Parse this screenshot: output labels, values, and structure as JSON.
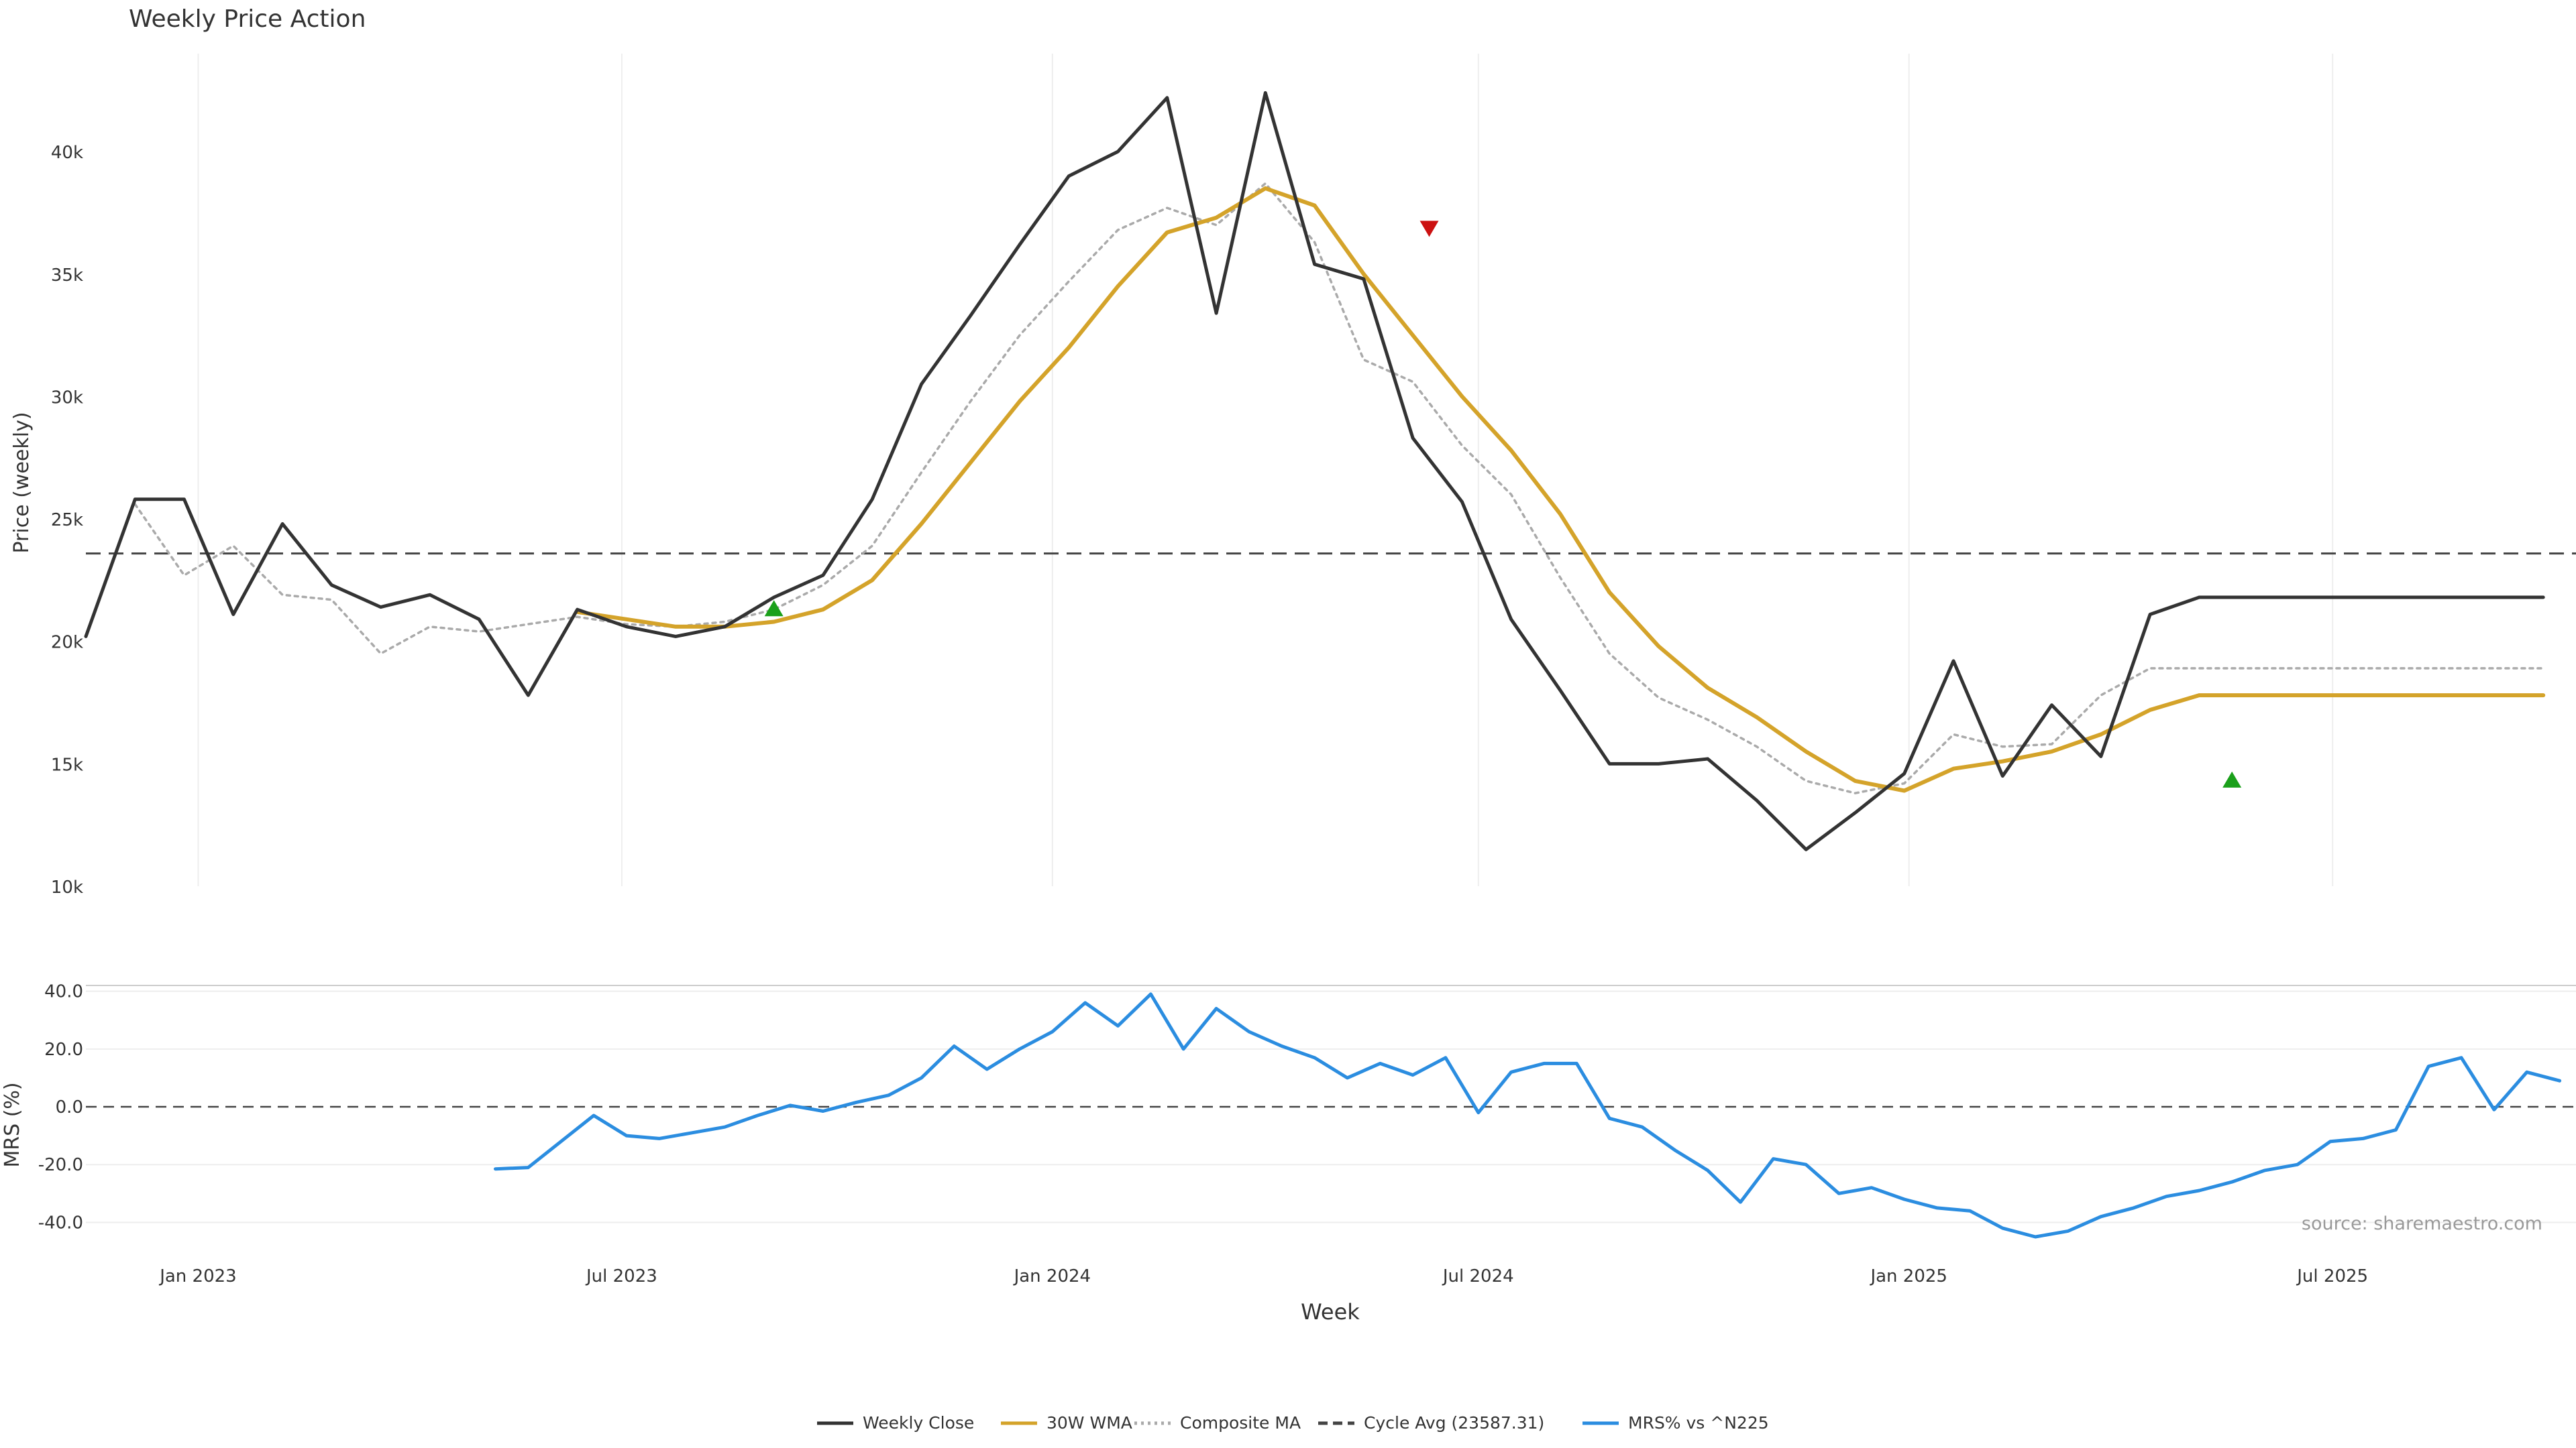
{
  "chart_data": [
    {
      "type": "line",
      "title": "Weekly Price Action",
      "xlabel": "",
      "ylabel": "Price (weekly)",
      "ylim": [
        10000,
        44000
      ],
      "y_ticks": [
        {
          "value": 10000,
          "label": "10k"
        },
        {
          "value": 15000,
          "label": "15k"
        },
        {
          "value": 20000,
          "label": "20k"
        },
        {
          "value": 25000,
          "label": "25k"
        },
        {
          "value": 30000,
          "label": "30k"
        },
        {
          "value": 35000,
          "label": "35k"
        },
        {
          "value": 40000,
          "label": "40k"
        }
      ],
      "x_ticks": [
        "Jan 2023",
        "Jul 2023",
        "Jan 2024",
        "Jul 2024",
        "Jan 2025",
        "Jul 2025"
      ],
      "x": [
        "2022-11-14",
        "2022-12-05",
        "2022-12-26",
        "2023-01-16",
        "2023-02-06",
        "2023-02-27",
        "2023-03-20",
        "2023-04-10",
        "2023-05-01",
        "2023-05-22",
        "2023-06-12",
        "2023-07-03",
        "2023-07-24",
        "2023-08-14",
        "2023-09-04",
        "2023-09-25",
        "2023-10-16",
        "2023-11-06",
        "2023-11-27",
        "2023-12-18",
        "2024-01-08",
        "2024-01-29",
        "2024-02-19",
        "2024-03-11",
        "2024-04-01",
        "2024-04-22",
        "2024-05-13",
        "2024-06-03",
        "2024-06-24",
        "2024-07-15",
        "2024-08-05",
        "2024-08-26",
        "2024-09-16",
        "2024-10-07",
        "2024-10-28",
        "2024-11-18",
        "2024-12-09",
        "2024-12-30",
        "2025-01-20",
        "2025-02-10",
        "2025-03-03",
        "2025-03-24",
        "2025-04-14",
        "2025-05-05",
        "2025-05-26",
        "2025-06-16",
        "2025-07-07",
        "2025-07-28",
        "2025-08-18",
        "2025-09-08",
        "2025-09-29"
      ],
      "grid": {
        "x": true,
        "y": false
      },
      "reference_line": {
        "name": "Cycle Avg (23587.31)",
        "value": 23587.31
      },
      "series": [
        {
          "name": "Weekly Close",
          "color": "#333333",
          "style": "solid",
          "values": [
            20200,
            25800,
            25800,
            21100,
            24800,
            22300,
            21400,
            21900,
            20900,
            17800,
            21300,
            20600,
            20200,
            20600,
            21800,
            22700,
            25800,
            30500,
            33300,
            36200,
            39000,
            40000,
            42200,
            33400,
            42400,
            35400,
            34800,
            28300,
            25700,
            20900,
            18000,
            15000,
            15000,
            15200,
            13500,
            11500,
            13000,
            14600,
            19200,
            14500,
            17400,
            15300,
            21100,
            21800,
            21800,
            21800,
            21800,
            21800,
            21800,
            21800,
            21800
          ]
        },
        {
          "name": "30W WMA",
          "color": "#d4a32a",
          "style": "solid",
          "values": [
            null,
            null,
            null,
            null,
            null,
            null,
            null,
            null,
            null,
            null,
            21200,
            20900,
            20600,
            20600,
            20800,
            21300,
            22500,
            24800,
            27300,
            29800,
            32000,
            34500,
            36700,
            37300,
            38500,
            37800,
            35000,
            32500,
            30000,
            27800,
            25200,
            22000,
            19800,
            18100,
            16900,
            15500,
            14300,
            13900,
            14800,
            15100,
            15500,
            16200,
            17200,
            17800,
            17800,
            17800,
            17800,
            17800,
            17800,
            17800,
            17800
          ]
        },
        {
          "name": "Composite MA",
          "color": "#aaaaaa",
          "style": "dotted",
          "values": [
            null,
            25600,
            22700,
            23900,
            21900,
            21700,
            19500,
            20600,
            20400,
            20700,
            21000,
            20700,
            20600,
            20800,
            21300,
            22300,
            23900,
            26900,
            29800,
            32500,
            34700,
            36800,
            37700,
            37000,
            38700,
            36300,
            31500,
            30600,
            28000,
            26000,
            22600,
            19500,
            17700,
            16800,
            15700,
            14300,
            13800,
            14200,
            16200,
            15700,
            15800,
            17800,
            18900,
            18900,
            18900,
            18900,
            18900,
            18900,
            18900,
            18900,
            18900
          ]
        }
      ],
      "markers": [
        {
          "type": "buy",
          "x": "2023-09-04",
          "y": 21300,
          "color": "#1aa01a"
        },
        {
          "type": "sell",
          "x": "2024-06-10",
          "y": 36900,
          "color": "#cc1111"
        },
        {
          "type": "buy",
          "x": "2025-05-19",
          "y": 14300,
          "color": "#1aa01a"
        }
      ]
    },
    {
      "type": "line",
      "title": "",
      "xlabel": "Week",
      "ylabel": "MRS (%)",
      "ylim": [
        -45,
        42
      ],
      "y_ticks": [
        {
          "value": 40,
          "label": "40.0"
        },
        {
          "value": 20,
          "label": "20.0"
        },
        {
          "value": 0,
          "label": "0.0"
        },
        {
          "value": -20,
          "label": "-20.0"
        },
        {
          "value": -40,
          "label": "-40.0"
        }
      ],
      "x_ticks": [
        "Jan 2023",
        "Jul 2023",
        "Jan 2024",
        "Jul 2024",
        "Jan 2025",
        "Jul 2025"
      ],
      "grid": {
        "x": false,
        "y": true
      },
      "reference_line": {
        "value": 0
      },
      "series": [
        {
          "name": "MRS% vs ^N225",
          "color": "#2b8de0",
          "style": "solid",
          "x": [
            "2023-05-08",
            "2023-05-22",
            "2023-06-05",
            "2023-06-19",
            "2023-07-03",
            "2023-07-17",
            "2023-07-31",
            "2023-08-14",
            "2023-08-28",
            "2023-09-11",
            "2023-09-25",
            "2023-10-09",
            "2023-10-23",
            "2023-11-06",
            "2023-11-20",
            "2023-12-04",
            "2023-12-18",
            "2024-01-01",
            "2024-01-15",
            "2024-01-29",
            "2024-02-12",
            "2024-02-26",
            "2024-03-11",
            "2024-03-25",
            "2024-04-08",
            "2024-04-22",
            "2024-05-06",
            "2024-05-20",
            "2024-06-03",
            "2024-06-17",
            "2024-07-01",
            "2024-07-15",
            "2024-07-29",
            "2024-08-12",
            "2024-08-26",
            "2024-09-09",
            "2024-09-23",
            "2024-10-07",
            "2024-10-21",
            "2024-11-04",
            "2024-11-18",
            "2024-12-02",
            "2024-12-16",
            "2024-12-30",
            "2025-01-13",
            "2025-01-27",
            "2025-02-10",
            "2025-02-24",
            "2025-03-10",
            "2025-03-24",
            "2025-04-07",
            "2025-04-21",
            "2025-05-05",
            "2025-05-19",
            "2025-06-02",
            "2025-06-16",
            "2025-06-30",
            "2025-07-14",
            "2025-07-28",
            "2025-08-11",
            "2025-08-25",
            "2025-09-08",
            "2025-09-22",
            "2025-10-06"
          ],
          "values": [
            -21.5,
            -21.0,
            -12.0,
            -3.0,
            -10.0,
            -11.0,
            -9.0,
            -7.0,
            -3.0,
            0.5,
            -1.5,
            1.5,
            4.0,
            10.0,
            21.0,
            13.0,
            20.0,
            26.0,
            36.0,
            28.0,
            39.0,
            20.0,
            34.0,
            26.0,
            21.0,
            17.0,
            10.0,
            15.0,
            11.0,
            17.0,
            -2.0,
            12.0,
            15.0,
            15.0,
            -4.0,
            -7.0,
            -15.0,
            -22.0,
            -33.0,
            -18.0,
            -20.0,
            -30.0,
            -28.0,
            -32.0,
            -35.0,
            -36.0,
            -42.0,
            -45.0,
            -43.0,
            -38.0,
            -35.0,
            -31.0,
            -29.0,
            -26.0,
            -22.0,
            -20.0,
            -12.0,
            -11.0,
            -8.0,
            14.0,
            17.0,
            -1.0,
            12.0,
            9.0
          ]
        }
      ]
    }
  ],
  "legend": {
    "placement": "bottom-center",
    "items": [
      {
        "label": "Weekly Close",
        "color": "#333333",
        "style": "solid"
      },
      {
        "label": "30W WMA",
        "color": "#d4a32a",
        "style": "solid"
      },
      {
        "label": "Composite MA",
        "color": "#aaaaaa",
        "style": "dotted"
      },
      {
        "label": "Cycle Avg (23587.31)",
        "color": "#444444",
        "style": "dashed"
      },
      {
        "label": "MRS% vs ^N225",
        "color": "#2b8de0",
        "style": "solid"
      }
    ]
  },
  "watermark": "source: sharemaestro.com"
}
